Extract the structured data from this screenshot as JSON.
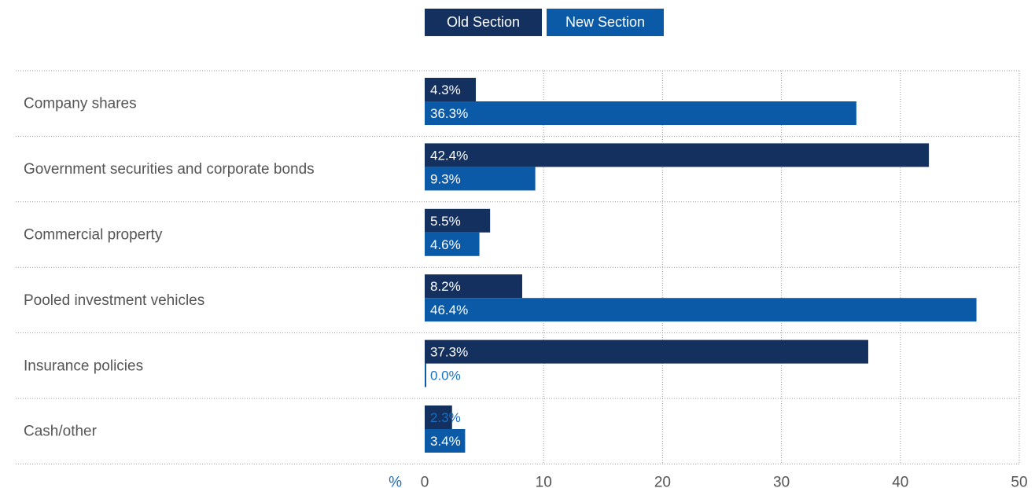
{
  "colors": {
    "old": "#13305f",
    "new": "#0b5aa8",
    "grid": "#9a9a9a",
    "text": "#555555",
    "unit": "#1a6fc0",
    "bar_label": "#ffffff"
  },
  "legend": [
    {
      "label": "Old Section",
      "color": "#13305f"
    },
    {
      "label": "New Section",
      "color": "#0b5aa8"
    }
  ],
  "chart_data": {
    "type": "bar",
    "orientation": "horizontal",
    "categories": [
      "Company shares",
      "Government securities and corporate bonds",
      "Commercial property",
      "Pooled investment vehicles",
      "Insurance policies",
      "Cash/other"
    ],
    "series": [
      {
        "name": "Old Section",
        "values": [
          4.3,
          42.4,
          5.5,
          8.2,
          37.3,
          2.3
        ]
      },
      {
        "name": "New Section",
        "values": [
          36.3,
          9.3,
          4.6,
          46.4,
          0.0,
          3.4
        ]
      }
    ],
    "value_labels": [
      [
        "4.3%",
        "42.4%",
        "5.5%",
        "8.2%",
        "37.3%",
        "2.3%"
      ],
      [
        "36.3%",
        "9.3%",
        "4.6%",
        "46.4%",
        "0.0%",
        "3.4%"
      ]
    ],
    "xlabel": "%",
    "xlim": [
      0,
      50
    ],
    "xticks": [
      0,
      10,
      20,
      30,
      40,
      50
    ],
    "grid": true,
    "legend_position": "top-center"
  }
}
